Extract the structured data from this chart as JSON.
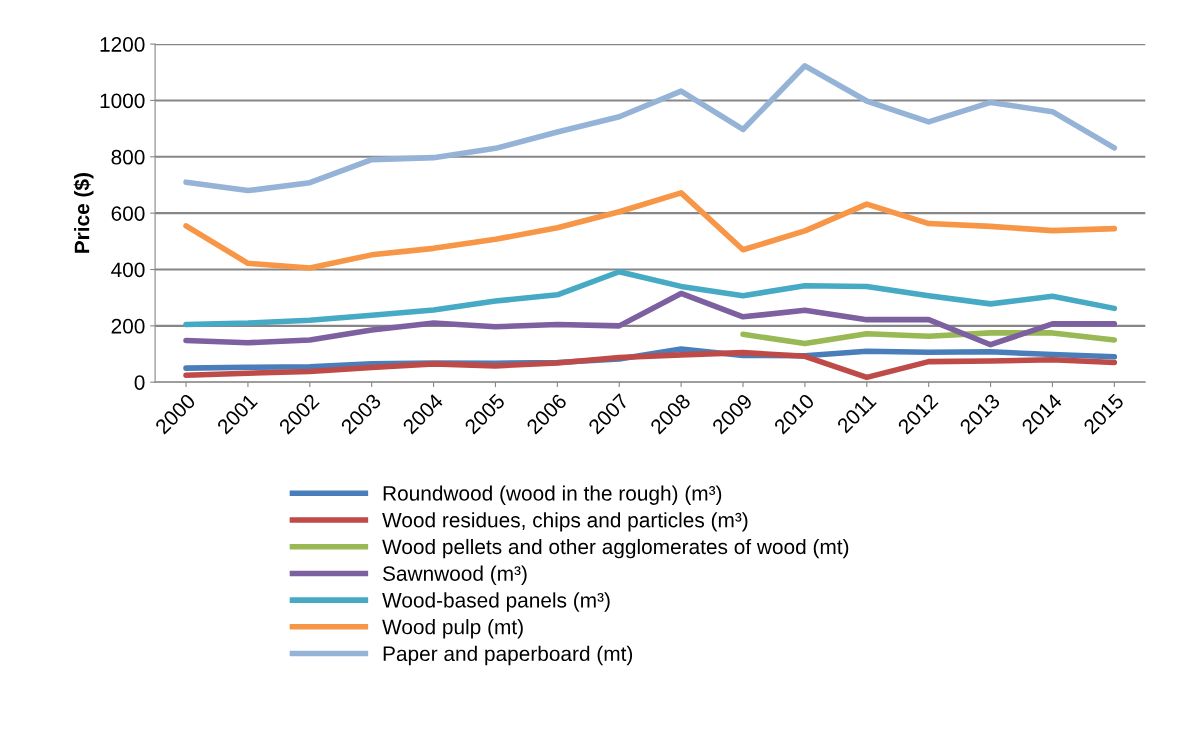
{
  "chart_data": {
    "type": "line",
    "ylabel": "Price ($)",
    "categories": [
      "2000",
      "2001",
      "2002",
      "2003",
      "2004",
      "2005",
      "2006",
      "2007",
      "2008",
      "2009",
      "2010",
      "2011",
      "2012",
      "2013",
      "2014",
      "2015"
    ],
    "ylim": [
      0,
      1200
    ],
    "yticks": [
      0,
      200,
      400,
      600,
      800,
      1000,
      1200
    ],
    "grid": "y",
    "legend": "bottom",
    "marker": "none",
    "line_style": "solid",
    "series": [
      {
        "name": "Roundwood (wood in the rough) (m³)",
        "color": "#4a7ebb",
        "values": [
          50,
          53,
          55,
          65,
          68,
          67,
          70,
          82,
          118,
          95,
          94,
          110,
          106,
          108,
          98,
          90
        ]
      },
      {
        "name": "Wood residues, chips and particles (m³)",
        "color": "#be4b48",
        "values": [
          25,
          32,
          38,
          52,
          65,
          58,
          68,
          88,
          97,
          105,
          92,
          17,
          73,
          75,
          80,
          70
        ]
      },
      {
        "name": "Wood pellets and other agglomerates of wood (mt)",
        "color": "#98b954",
        "values": [
          null,
          null,
          null,
          null,
          null,
          null,
          null,
          null,
          null,
          170,
          137,
          172,
          163,
          175,
          175,
          150
        ]
      },
      {
        "name": "Sawnwood (m³)",
        "color": "#7d60a0",
        "values": [
          148,
          140,
          150,
          185,
          210,
          197,
          205,
          200,
          315,
          232,
          255,
          222,
          222,
          133,
          207,
          207
        ]
      },
      {
        "name": "Wood-based panels (m³)",
        "color": "#46aac5",
        "values": [
          205,
          210,
          220,
          238,
          256,
          288,
          310,
          392,
          340,
          307,
          342,
          340,
          307,
          278,
          305,
          262
        ]
      },
      {
        "name": "Wood pulp (mt)",
        "color": "#f79646",
        "values": [
          555,
          422,
          405,
          452,
          475,
          507,
          548,
          605,
          672,
          470,
          537,
          632,
          563,
          553,
          538,
          545
        ]
      },
      {
        "name": "Paper and paperboard (mt)",
        "color": "#95b3d7",
        "values": [
          710,
          680,
          708,
          790,
          797,
          830,
          888,
          942,
          1033,
          897,
          1123,
          998,
          924,
          993,
          960,
          832
        ]
      }
    ]
  }
}
